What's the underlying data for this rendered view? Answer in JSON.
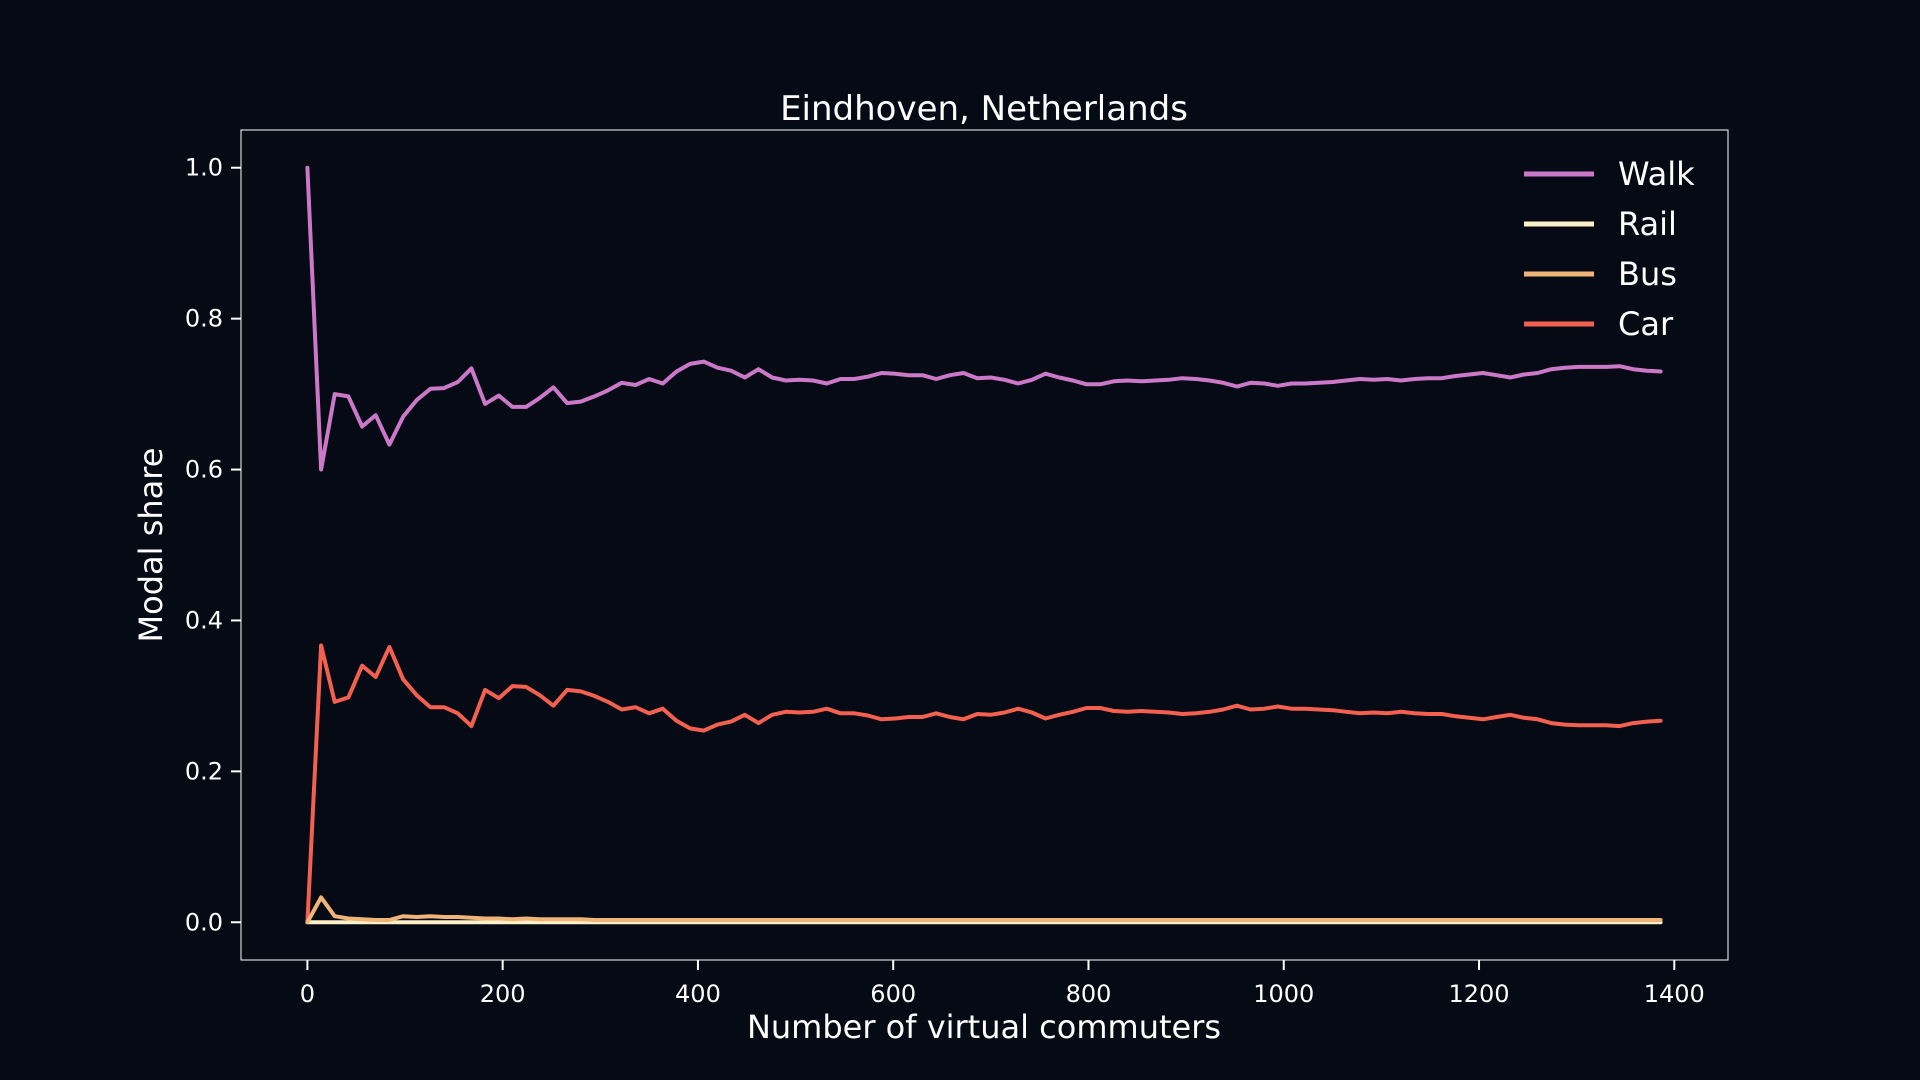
{
  "chart_data": {
    "type": "line",
    "title": "Eindhoven, Netherlands",
    "xlabel": "Number of virtual commuters",
    "ylabel": "Modal share",
    "xlim": [
      -68,
      1455
    ],
    "ylim": [
      -0.05,
      1.05
    ],
    "xticks": [
      0,
      200,
      400,
      600,
      800,
      1000,
      1200,
      1400
    ],
    "yticks": [
      0.0,
      0.2,
      0.4,
      0.6,
      0.8,
      1.0
    ],
    "xtick_labels": [
      "0",
      "200",
      "400",
      "600",
      "800",
      "1000",
      "1200",
      "1400"
    ],
    "ytick_labels": [
      "0.0",
      "0.2",
      "0.4",
      "0.6",
      "0.8",
      "1.0"
    ],
    "grid": false,
    "legend": {
      "position": "top-right"
    },
    "x": [
      0,
      14,
      28,
      42,
      56,
      70,
      84,
      98,
      112,
      126,
      140,
      154,
      168,
      182,
      196,
      210,
      224,
      238,
      252,
      266,
      280,
      294,
      308,
      322,
      336,
      350,
      364,
      378,
      392,
      406,
      420,
      434,
      448,
      462,
      476,
      490,
      504,
      518,
      532,
      546,
      560,
      574,
      588,
      602,
      616,
      630,
      644,
      658,
      672,
      686,
      700,
      714,
      728,
      742,
      756,
      770,
      784,
      798,
      812,
      826,
      840,
      854,
      868,
      882,
      896,
      910,
      924,
      938,
      952,
      966,
      980,
      994,
      1008,
      1022,
      1036,
      1050,
      1064,
      1078,
      1092,
      1106,
      1120,
      1134,
      1148,
      1162,
      1176,
      1190,
      1204,
      1218,
      1232,
      1246,
      1260,
      1274,
      1288,
      1302,
      1316,
      1330,
      1344,
      1358,
      1372,
      1386
    ],
    "series": [
      {
        "name": "Walk",
        "color": "#cc78c8",
        "values": [
          1.0,
          0.6,
          0.7,
          0.697,
          0.657,
          0.672,
          0.633,
          0.67,
          0.692,
          0.707,
          0.708,
          0.716,
          0.734,
          0.687,
          0.698,
          0.683,
          0.683,
          0.695,
          0.709,
          0.688,
          0.69,
          0.697,
          0.705,
          0.715,
          0.712,
          0.72,
          0.714,
          0.73,
          0.74,
          0.743,
          0.735,
          0.731,
          0.722,
          0.733,
          0.722,
          0.718,
          0.719,
          0.718,
          0.714,
          0.72,
          0.72,
          0.723,
          0.728,
          0.727,
          0.725,
          0.725,
          0.72,
          0.725,
          0.728,
          0.721,
          0.722,
          0.719,
          0.714,
          0.719,
          0.727,
          0.722,
          0.718,
          0.713,
          0.713,
          0.717,
          0.718,
          0.717,
          0.718,
          0.719,
          0.721,
          0.72,
          0.718,
          0.715,
          0.71,
          0.715,
          0.714,
          0.711,
          0.714,
          0.714,
          0.715,
          0.716,
          0.718,
          0.72,
          0.719,
          0.72,
          0.718,
          0.72,
          0.721,
          0.721,
          0.724,
          0.726,
          0.728,
          0.725,
          0.722,
          0.726,
          0.728,
          0.733,
          0.735,
          0.736,
          0.736,
          0.736,
          0.737,
          0.733,
          0.731,
          0.73
        ]
      },
      {
        "name": "Rail",
        "color": "#fcf0c8",
        "values": [
          0.0,
          0.0,
          0.0,
          0.0,
          0.0,
          0.0,
          0.0,
          0.0,
          0.0,
          0.0,
          0.0,
          0.0,
          0.0,
          0.0,
          0.0,
          0.0,
          0.0,
          0.0,
          0.0,
          0.0,
          0.0,
          0.0,
          0.0,
          0.0,
          0.0,
          0.0,
          0.0,
          0.0,
          0.0,
          0.0,
          0.0,
          0.0,
          0.0,
          0.0,
          0.0,
          0.0,
          0.0,
          0.0,
          0.0,
          0.0,
          0.0,
          0.0,
          0.0,
          0.0,
          0.0,
          0.0,
          0.0,
          0.0,
          0.0,
          0.0,
          0.0,
          0.0,
          0.0,
          0.0,
          0.0,
          0.0,
          0.0,
          0.0,
          0.0,
          0.0,
          0.0,
          0.0,
          0.0,
          0.0,
          0.0,
          0.0,
          0.0,
          0.0,
          0.0,
          0.0,
          0.0,
          0.0,
          0.0,
          0.0,
          0.0,
          0.0,
          0.0,
          0.0,
          0.0,
          0.0,
          0.0,
          0.0,
          0.0,
          0.0,
          0.0,
          0.0,
          0.0,
          0.0,
          0.0,
          0.0,
          0.0,
          0.0,
          0.0,
          0.0,
          0.0,
          0.0,
          0.0,
          0.0,
          0.0,
          0.0
        ]
      },
      {
        "name": "Bus",
        "color": "#f0b478",
        "values": [
          0.0,
          0.033,
          0.008,
          0.005,
          0.004,
          0.003,
          0.003,
          0.008,
          0.007,
          0.008,
          0.007,
          0.007,
          0.006,
          0.005,
          0.005,
          0.004,
          0.005,
          0.004,
          0.004,
          0.004,
          0.004,
          0.003,
          0.003,
          0.003,
          0.003,
          0.003,
          0.003,
          0.003,
          0.003,
          0.003,
          0.003,
          0.003,
          0.003,
          0.003,
          0.003,
          0.003,
          0.003,
          0.003,
          0.003,
          0.003,
          0.003,
          0.003,
          0.003,
          0.003,
          0.003,
          0.003,
          0.003,
          0.003,
          0.003,
          0.003,
          0.003,
          0.003,
          0.003,
          0.003,
          0.003,
          0.003,
          0.003,
          0.003,
          0.003,
          0.003,
          0.003,
          0.003,
          0.003,
          0.003,
          0.003,
          0.003,
          0.003,
          0.003,
          0.003,
          0.003,
          0.003,
          0.003,
          0.003,
          0.003,
          0.003,
          0.003,
          0.003,
          0.003,
          0.003,
          0.003,
          0.003,
          0.003,
          0.003,
          0.003,
          0.003,
          0.003,
          0.003,
          0.003,
          0.003,
          0.003,
          0.003,
          0.003,
          0.003,
          0.003,
          0.003,
          0.003,
          0.003,
          0.003,
          0.003,
          0.003
        ]
      },
      {
        "name": "Car",
        "color": "#f46050",
        "values": [
          0.0,
          0.367,
          0.292,
          0.298,
          0.34,
          0.325,
          0.365,
          0.322,
          0.301,
          0.285,
          0.285,
          0.277,
          0.26,
          0.308,
          0.297,
          0.313,
          0.312,
          0.301,
          0.287,
          0.308,
          0.306,
          0.3,
          0.292,
          0.282,
          0.285,
          0.277,
          0.283,
          0.267,
          0.257,
          0.254,
          0.262,
          0.266,
          0.275,
          0.264,
          0.275,
          0.279,
          0.278,
          0.279,
          0.283,
          0.277,
          0.277,
          0.274,
          0.269,
          0.27,
          0.272,
          0.272,
          0.277,
          0.272,
          0.269,
          0.276,
          0.275,
          0.278,
          0.283,
          0.278,
          0.27,
          0.275,
          0.279,
          0.284,
          0.284,
          0.28,
          0.279,
          0.28,
          0.279,
          0.278,
          0.276,
          0.277,
          0.279,
          0.282,
          0.287,
          0.282,
          0.283,
          0.286,
          0.283,
          0.283,
          0.282,
          0.281,
          0.279,
          0.277,
          0.278,
          0.277,
          0.279,
          0.277,
          0.276,
          0.276,
          0.273,
          0.271,
          0.269,
          0.272,
          0.275,
          0.271,
          0.269,
          0.264,
          0.262,
          0.261,
          0.261,
          0.261,
          0.26,
          0.264,
          0.266,
          0.267
        ]
      }
    ]
  }
}
